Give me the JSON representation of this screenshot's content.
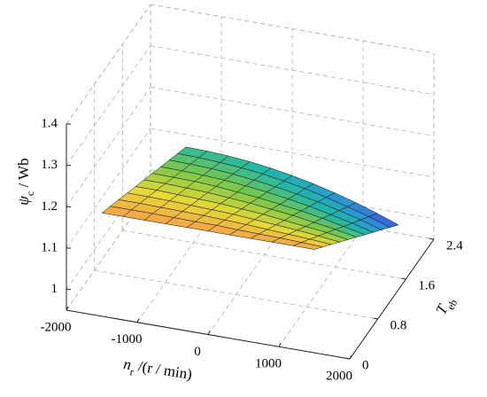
{
  "chart_data": {
    "type": "surface",
    "xlabel": [
      "n",
      "r",
      " /(r / min)"
    ],
    "ylabel": [
      "T",
      "eb"
    ],
    "zlabel": [
      "ψ",
      "c",
      " / Wb"
    ],
    "xlim": [
      -2000,
      2000
    ],
    "xticks": [
      -2000,
      -1000,
      0,
      1000,
      2000
    ],
    "ylim": [
      0,
      2.4
    ],
    "yticks": [
      0,
      0.8,
      1.6,
      2.4
    ],
    "zlim": [
      0.95,
      1.4
    ],
    "zticks": [
      1,
      1.1,
      1.2,
      1.3,
      1.4
    ],
    "grid": true,
    "colormap": [
      "#3e4fd6",
      "#2f8fd8",
      "#1fb7a8",
      "#7cc84a",
      "#e6d838",
      "#f4a24a"
    ],
    "x": [
      -1500,
      -1200,
      -900,
      -600,
      -300,
      0,
      300,
      600,
      900,
      1200,
      1500
    ],
    "y": [
      0,
      0.24,
      0.48,
      0.72,
      0.96,
      1.2,
      1.44,
      1.68,
      1.92,
      2.16,
      2.4
    ],
    "z": [
      [
        1.2,
        1.2,
        1.2,
        1.2,
        1.2,
        1.2,
        1.2,
        1.2,
        1.2,
        1.2,
        1.2
      ],
      [
        1.187,
        1.187,
        1.187,
        1.186,
        1.185,
        1.185,
        1.183,
        1.182,
        1.181,
        1.179,
        1.177
      ],
      [
        1.174,
        1.174,
        1.173,
        1.172,
        1.171,
        1.169,
        1.167,
        1.164,
        1.161,
        1.158,
        1.154
      ],
      [
        1.161,
        1.161,
        1.16,
        1.158,
        1.156,
        1.154,
        1.15,
        1.146,
        1.142,
        1.137,
        1.131
      ],
      [
        1.148,
        1.148,
        1.146,
        1.144,
        1.142,
        1.138,
        1.134,
        1.128,
        1.122,
        1.116,
        1.108
      ],
      [
        1.135,
        1.135,
        1.133,
        1.131,
        1.127,
        1.123,
        1.117,
        1.111,
        1.103,
        1.095,
        1.085
      ],
      [
        1.122,
        1.121,
        1.12,
        1.117,
        1.112,
        1.107,
        1.1,
        1.093,
        1.084,
        1.073,
        1.062
      ],
      [
        1.109,
        1.108,
        1.106,
        1.103,
        1.098,
        1.092,
        1.084,
        1.075,
        1.064,
        1.052,
        1.039
      ],
      [
        1.096,
        1.095,
        1.093,
        1.089,
        1.083,
        1.076,
        1.067,
        1.057,
        1.045,
        1.031,
        1.016
      ],
      [
        1.083,
        1.082,
        1.079,
        1.075,
        1.069,
        1.061,
        1.051,
        1.039,
        1.025,
        1.01,
        0.993
      ],
      [
        1.07,
        1.069,
        1.066,
        1.061,
        1.054,
        1.045,
        1.034,
        1.021,
        1.006,
        0.989,
        0.97
      ]
    ]
  }
}
